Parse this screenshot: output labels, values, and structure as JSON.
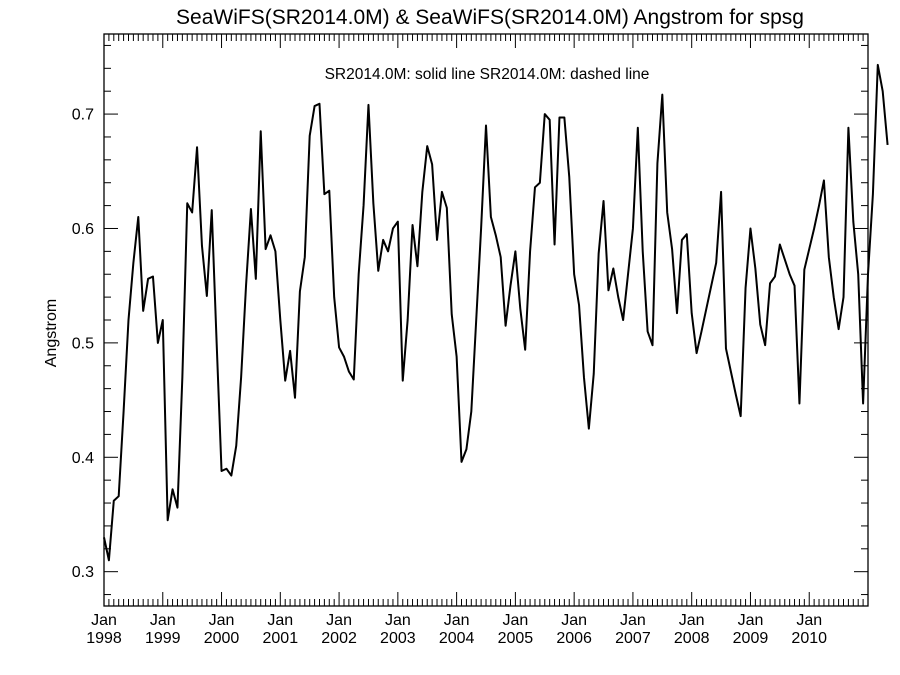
{
  "chart_data": {
    "type": "line",
    "title": "SeaWiFS(SR2014.0M) & SeaWiFS(SR2014.0M)  Angstrom for spsg",
    "legend_text": "SR2014.0M: solid line   SR2014.0M: dashed line",
    "xlabel": "",
    "ylabel": "Angstrom",
    "ylim": [
      0.27,
      0.77
    ],
    "yticks": [
      0.3,
      0.4,
      0.5,
      0.6,
      0.7
    ],
    "ytick_labels": [
      "0.3",
      "0.4",
      "0.5",
      "0.6",
      "0.7"
    ],
    "xlim": [
      "1998-01",
      "2011-01"
    ],
    "xtick_labels": [
      {
        "month": "Jan",
        "year": "1998"
      },
      {
        "month": "Jan",
        "year": "1999"
      },
      {
        "month": "Jan",
        "year": "2000"
      },
      {
        "month": "Jan",
        "year": "2001"
      },
      {
        "month": "Jan",
        "year": "2002"
      },
      {
        "month": "Jan",
        "year": "2003"
      },
      {
        "month": "Jan",
        "year": "2004"
      },
      {
        "month": "Jan",
        "year": "2005"
      },
      {
        "month": "Jan",
        "year": "2006"
      },
      {
        "month": "Jan",
        "year": "2007"
      },
      {
        "month": "Jan",
        "year": "2008"
      },
      {
        "month": "Jan",
        "year": "2009"
      },
      {
        "month": "Jan",
        "year": "2010"
      }
    ],
    "grid": false,
    "series": [
      {
        "line_style": "solid",
        "color": "#000000",
        "start": "1998-01",
        "values": [
          0.33,
          0.31,
          0.362,
          0.366,
          0.44,
          0.52,
          0.57,
          0.61,
          0.528,
          0.556,
          0.558,
          0.5,
          0.52,
          0.345,
          0.372,
          0.356,
          0.47,
          0.622,
          0.614,
          0.671,
          0.585,
          0.541,
          0.616,
          0.5,
          0.388,
          0.39,
          0.384,
          0.41,
          0.47,
          0.55,
          0.617,
          0.556,
          0.685,
          0.582,
          0.594,
          0.58,
          0.52,
          0.467,
          0.493,
          0.452,
          0.545,
          0.575,
          0.681,
          0.707,
          0.709,
          0.63,
          0.633,
          0.54,
          0.496,
          0.488,
          0.475,
          0.468,
          0.56,
          0.62,
          0.708,
          0.622,
          0.563,
          0.59,
          0.58,
          0.6,
          0.606,
          0.467,
          0.52,
          0.603,
          0.567,
          0.632,
          0.672,
          0.656,
          0.59,
          0.632,
          0.618,
          0.525,
          0.488,
          0.396,
          0.407,
          0.44,
          0.52,
          0.6,
          0.69,
          0.61,
          0.594,
          0.575,
          0.515,
          0.55,
          0.58,
          0.53,
          0.494,
          0.58,
          0.636,
          0.64,
          0.7,
          0.695,
          0.586,
          0.697,
          0.697,
          0.645,
          0.56,
          0.533,
          0.47,
          0.425,
          0.473,
          0.578,
          0.624,
          0.546,
          0.565,
          0.54,
          0.52,
          0.56,
          0.6,
          0.688,
          0.58,
          0.51,
          0.498,
          0.657,
          0.717,
          0.614,
          0.582,
          0.526,
          0.59,
          0.595,
          0.526,
          0.491,
          0.51,
          0.53,
          0.55,
          0.57,
          0.632,
          0.495,
          0.475,
          0.455,
          0.436,
          0.548,
          0.6,
          0.565,
          0.516,
          0.498,
          0.552,
          0.558,
          0.586,
          0.573,
          0.56,
          0.55,
          0.447,
          0.564,
          0.582,
          0.6,
          0.62,
          0.642,
          0.575,
          0.54,
          0.512,
          0.54,
          0.688,
          0.606,
          0.56,
          0.447,
          0.56,
          0.63,
          0.743,
          0.72,
          0.673
        ]
      }
    ]
  }
}
